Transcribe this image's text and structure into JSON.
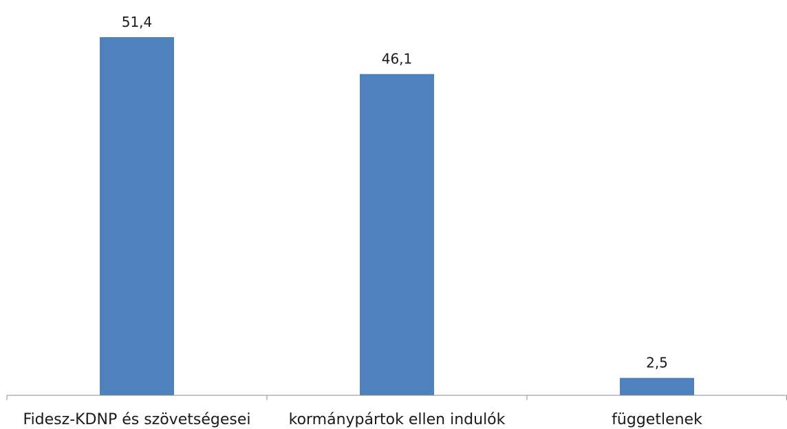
{
  "chart_data": {
    "type": "bar",
    "categories": [
      "Fidesz-KDNP és szövetségesei",
      "kormánypártok ellen indulók",
      "függetlenek"
    ],
    "values": [
      51.4,
      46.1,
      2.5
    ],
    "value_labels": [
      "51,4",
      "46,1",
      "2,5"
    ],
    "title": "",
    "xlabel": "",
    "ylabel": "",
    "ylim": [
      0,
      51.4
    ],
    "grid": false,
    "legend": "none",
    "colors": {
      "bar": "#4f81bd",
      "axis": "#8c8c8c",
      "text": "#1a1a1a"
    }
  }
}
